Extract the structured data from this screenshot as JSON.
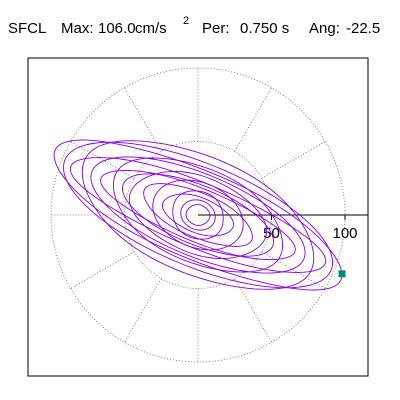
{
  "header": {
    "station": "SFCL",
    "max_label": "Max:",
    "max_value": "106.0",
    "max_unit": "cm/s",
    "max_unit_exp": "2",
    "period_label": "Per:",
    "period_value": "0.750 s",
    "angle_label": "Ang:",
    "angle_value": "-22.5"
  },
  "chart_data": {
    "type": "scatter",
    "title": "",
    "xlabel": "",
    "ylabel": "",
    "xlim": [
      -115,
      115
    ],
    "ylim": [
      -115,
      115
    ],
    "rings": [
      50,
      100
    ],
    "spoke_angles_deg": [
      0,
      30,
      60,
      90,
      120,
      150,
      180,
      210,
      240,
      270,
      300,
      330
    ],
    "tick_labels": [
      "50",
      "100"
    ],
    "grid": true,
    "colors": {
      "trace": "#8a00d4",
      "marker": "#008a78",
      "grid": "#666666",
      "axes": "#000000"
    },
    "marker": {
      "x": 98,
      "y": -40
    },
    "orbit_major_axis_angle_deg": -22.5,
    "orbits": [
      {
        "a": 106,
        "b": 30
      },
      {
        "a": 98,
        "b": 35
      },
      {
        "a": 92,
        "b": 22
      },
      {
        "a": 85,
        "b": 40
      },
      {
        "a": 78,
        "b": 28
      },
      {
        "a": 70,
        "b": 18
      },
      {
        "a": 62,
        "b": 32
      },
      {
        "a": 55,
        "b": 20
      },
      {
        "a": 48,
        "b": 26
      },
      {
        "a": 40,
        "b": 15
      },
      {
        "a": 32,
        "b": 22
      },
      {
        "a": 25,
        "b": 12
      },
      {
        "a": 18,
        "b": 16
      },
      {
        "a": 12,
        "b": 10
      },
      {
        "a": 8,
        "b": 7
      }
    ]
  }
}
